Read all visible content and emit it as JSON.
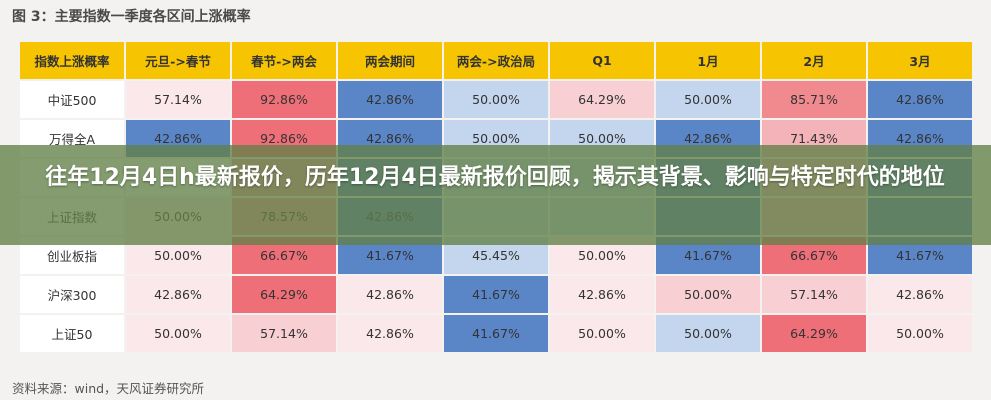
{
  "figure_title": "图 3：主要指数一季度各区间上涨概率",
  "source_note": "资料来源：wind，天风证券研究所",
  "banner_title": "往年12月4日h最新报价，历年12月4日最新报价回顾，揭示其背景、影响与特定时代的地位",
  "table": {
    "headers": [
      "指数上涨概率",
      "元旦->春节",
      "春节->两会",
      "两会期间",
      "两会->政治局",
      "Q1",
      "1月",
      "2月",
      "3月"
    ],
    "rows": [
      {
        "label": "中证500",
        "values": [
          "57.14%",
          "92.86%",
          "42.86%",
          "50.00%",
          "64.29%",
          "50.00%",
          "85.71%",
          "42.86%"
        ],
        "colors": [
          "#fbe8ea",
          "#ef6f78",
          "#5a86c8",
          "#c4d6ee",
          "#f8d0d4",
          "#c4d6ee",
          "#f08a8f",
          "#5a86c8"
        ]
      },
      {
        "label": "万得全A",
        "values": [
          "42.86%",
          "92.86%",
          "42.86%",
          "50.00%",
          "50.00%",
          "42.86%",
          "71.43%",
          "42.86%"
        ],
        "colors": [
          "#5a86c8",
          "#ef6f78",
          "#5a86c8",
          "#c4d6ee",
          "#c4d6ee",
          "#5a86c8",
          "#f4b3b8",
          "#5a86c8"
        ]
      },
      {
        "label": "",
        "values": [
          "",
          "",
          "",
          "",
          "",
          "",
          "",
          ""
        ],
        "colors": [
          "#ffffff",
          "#f4a1a6",
          "#5a86c8",
          "#c4d6ee",
          "#c4d6ee",
          "#5a86c8",
          "#f4b3b8",
          "#5a86c8"
        ]
      },
      {
        "label": "上证指数",
        "values": [
          "50.00%",
          "78.57%",
          "42.86%",
          "",
          "",
          "",
          "",
          ""
        ],
        "colors": [
          "#fbe8ea",
          "#f4a1a6",
          "#5a86c8",
          "#c4d6ee",
          "#c4d6ee",
          "#5a86c8",
          "#f4b3b8",
          "#5a86c8"
        ]
      },
      {
        "label": "创业板指",
        "values": [
          "50.00%",
          "66.67%",
          "41.67%",
          "45.45%",
          "50.00%",
          "41.67%",
          "66.67%",
          "41.67%"
        ],
        "colors": [
          "#fbe8ea",
          "#ef6f78",
          "#5a86c8",
          "#c4d6ee",
          "#fbe8ea",
          "#5a86c8",
          "#ef6f78",
          "#5a86c8"
        ]
      },
      {
        "label": "沪深300",
        "values": [
          "42.86%",
          "64.29%",
          "42.86%",
          "41.67%",
          "42.86%",
          "50.00%",
          "57.14%",
          "42.86%"
        ],
        "colors": [
          "#fbe8ea",
          "#ef6f78",
          "#fbe8ea",
          "#5a86c8",
          "#fbe8ea",
          "#f8d0d4",
          "#f8d0d4",
          "#fbe8ea"
        ]
      },
      {
        "label": "上证50",
        "values": [
          "50.00%",
          "57.14%",
          "42.86%",
          "41.67%",
          "50.00%",
          "50.00%",
          "64.29%",
          "50.00%"
        ],
        "colors": [
          "#fbe8ea",
          "#f8d0d4",
          "#fbe8ea",
          "#5a86c8",
          "#fbe8ea",
          "#c4d6ee",
          "#ef6f78",
          "#fbe8ea"
        ]
      }
    ],
    "header_color": "#f6c400",
    "label_color": "#ffffff"
  }
}
